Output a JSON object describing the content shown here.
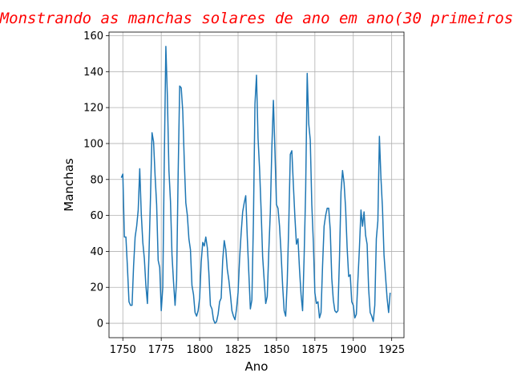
{
  "chart_data": {
    "type": "line",
    "title": "Monstrando as manchas solares de ano em ano(30 primeiros",
    "xlabel": "Ano",
    "ylabel": "Manchas",
    "xlim": [
      1741,
      1933
    ],
    "ylim": [
      -8,
      162
    ],
    "xticks": [
      1750,
      1775,
      1800,
      1825,
      1850,
      1875,
      1900,
      1925
    ],
    "yticks": [
      0,
      20,
      40,
      60,
      80,
      100,
      120,
      140,
      160
    ],
    "grid": true,
    "legend": "none",
    "series": [
      {
        "color": "#1f77b4",
        "x": [
          1749,
          1750,
          1751,
          1752,
          1753,
          1754,
          1755,
          1756,
          1757,
          1758,
          1759,
          1760,
          1761,
          1762,
          1763,
          1764,
          1765,
          1766,
          1767,
          1768,
          1769,
          1770,
          1771,
          1772,
          1773,
          1774,
          1775,
          1776,
          1777,
          1778,
          1779,
          1780,
          1781,
          1782,
          1783,
          1784,
          1785,
          1786,
          1787,
          1788,
          1789,
          1790,
          1791,
          1792,
          1793,
          1794,
          1795,
          1796,
          1797,
          1798,
          1799,
          1800,
          1801,
          1802,
          1803,
          1804,
          1805,
          1806,
          1807,
          1808,
          1809,
          1810,
          1811,
          1812,
          1813,
          1814,
          1815,
          1816,
          1817,
          1818,
          1819,
          1820,
          1821,
          1822,
          1823,
          1824,
          1825,
          1826,
          1827,
          1828,
          1829,
          1830,
          1831,
          1832,
          1833,
          1834,
          1835,
          1836,
          1837,
          1838,
          1839,
          1840,
          1841,
          1842,
          1843,
          1844,
          1845,
          1846,
          1847,
          1848,
          1849,
          1850,
          1851,
          1852,
          1853,
          1854,
          1855,
          1856,
          1857,
          1858,
          1859,
          1860,
          1861,
          1862,
          1863,
          1864,
          1865,
          1866,
          1867,
          1868,
          1869,
          1870,
          1871,
          1872,
          1873,
          1874,
          1875,
          1876,
          1877,
          1878,
          1879,
          1880,
          1881,
          1882,
          1883,
          1884,
          1885,
          1886,
          1887,
          1888,
          1889,
          1890,
          1891,
          1892,
          1893,
          1894,
          1895,
          1896,
          1897,
          1898,
          1899,
          1900,
          1901,
          1902,
          1903,
          1904,
          1905,
          1906,
          1907,
          1908,
          1909,
          1910,
          1911,
          1912,
          1913,
          1914,
          1915,
          1916,
          1917,
          1918,
          1919,
          1920,
          1921,
          1922,
          1923,
          1924
        ],
        "y": [
          81,
          83,
          48,
          48,
          31,
          12,
          10,
          10,
          32,
          48,
          54,
          63,
          86,
          61,
          45,
          36,
          21,
          11,
          38,
          70,
          106,
          101,
          82,
          66,
          35,
          31,
          7,
          20,
          92,
          154,
          126,
          85,
          68,
          38,
          23,
          10,
          24,
          83,
          132,
          131,
          118,
          90,
          67,
          60,
          47,
          41,
          21,
          16,
          6,
          4,
          7,
          14,
          34,
          45,
          43,
          48,
          42,
          28,
          10,
          8,
          2,
          0,
          1,
          5,
          12,
          14,
          35,
          46,
          41,
          30,
          24,
          16,
          7,
          4,
          2,
          8,
          17,
          36,
          50,
          62,
          67,
          71,
          48,
          28,
          8,
          13,
          57,
          122,
          138,
          103,
          86,
          63,
          37,
          24,
          11,
          15,
          40,
          62,
          98,
          124,
          96,
          66,
          64,
          54,
          39,
          21,
          7,
          4,
          23,
          55,
          94,
          96,
          77,
          59,
          44,
          47,
          30,
          16,
          7,
          37,
          74,
          139,
          111,
          102,
          66,
          45,
          17,
          11,
          12,
          3,
          6,
          32,
          54,
          60,
          64,
          64,
          52,
          25,
          13,
          7,
          6,
          7,
          36,
          73,
          85,
          78,
          64,
          42,
          26,
          27,
          12,
          10,
          3,
          5,
          24,
          42,
          63,
          54,
          62,
          49,
          44,
          19,
          6,
          4,
          1,
          10,
          47,
          57,
          104,
          81,
          64,
          38,
          26,
          14,
          6,
          17
        ]
      }
    ]
  }
}
